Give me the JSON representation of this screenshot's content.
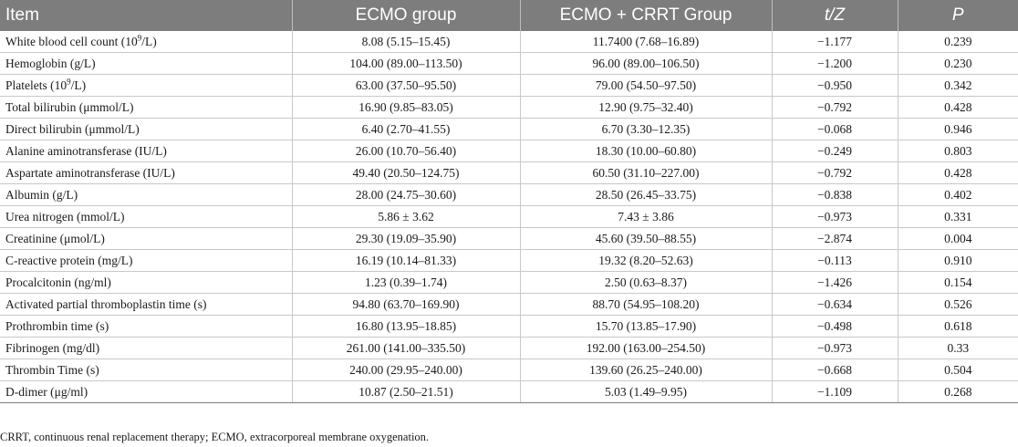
{
  "table": {
    "headers": [
      "Item",
      "ECMO group",
      "ECMO + CRRT Group",
      "t/Z",
      "P"
    ],
    "rows": [
      {
        "item_pre": "White blood cell count (10",
        "item_sup": "9",
        "item_post": "/L)",
        "ecmo": "8.08 (5.15–15.45)",
        "ecmo_crrt": "11.7400 (7.68–16.89)",
        "tz": "−1.177",
        "p": "0.239"
      },
      {
        "item_pre": "Hemoglobin (g/L)",
        "item_sup": "",
        "item_post": "",
        "ecmo": "104.00 (89.00–113.50)",
        "ecmo_crrt": "96.00 (89.00–106.50)",
        "tz": "−1.200",
        "p": "0.230"
      },
      {
        "item_pre": "Platelets (10",
        "item_sup": "9",
        "item_post": "/L)",
        "ecmo": "63.00 (37.50–95.50)",
        "ecmo_crrt": "79.00 (54.50–97.50)",
        "tz": "−0.950",
        "p": "0.342"
      },
      {
        "item_pre": "Total bilirubin (μmmol/L)",
        "item_sup": "",
        "item_post": "",
        "ecmo": "16.90 (9.85–83.05)",
        "ecmo_crrt": "12.90 (9.75–32.40)",
        "tz": "−0.792",
        "p": "0.428"
      },
      {
        "item_pre": "Direct bilirubin (μmmol/L)",
        "item_sup": "",
        "item_post": "",
        "ecmo": "6.40 (2.70–41.55)",
        "ecmo_crrt": "6.70 (3.30–12.35)",
        "tz": "−0.068",
        "p": "0.946"
      },
      {
        "item_pre": "Alanine aminotransferase (IU/L)",
        "item_sup": "",
        "item_post": "",
        "ecmo": "26.00 (10.70–56.40)",
        "ecmo_crrt": "18.30 (10.00–60.80)",
        "tz": "−0.249",
        "p": "0.803"
      },
      {
        "item_pre": "Aspartate aminotransferase (IU/L)",
        "item_sup": "",
        "item_post": "",
        "ecmo": "49.40 (20.50–124.75)",
        "ecmo_crrt": "60.50 (31.10–227.00)",
        "tz": "−0.792",
        "p": "0.428"
      },
      {
        "item_pre": "Albumin (g/L)",
        "item_sup": "",
        "item_post": "",
        "ecmo": "28.00 (24.75–30.60)",
        "ecmo_crrt": "28.50 (26.45–33.75)",
        "tz": "−0.838",
        "p": "0.402"
      },
      {
        "item_pre": "Urea nitrogen (mmol/L)",
        "item_sup": "",
        "item_post": "",
        "ecmo": "5.86 ± 3.62",
        "ecmo_crrt": "7.43 ± 3.86",
        "tz": "−0.973",
        "p": "0.331"
      },
      {
        "item_pre": "Creatinine (μmol/L)",
        "item_sup": "",
        "item_post": "",
        "ecmo": "29.30 (19.09–35.90)",
        "ecmo_crrt": "45.60 (39.50–88.55)",
        "tz": "−2.874",
        "p": "0.004"
      },
      {
        "item_pre": "C-reactive protein (mg/L)",
        "item_sup": "",
        "item_post": "",
        "ecmo": "16.19 (10.14–81.33)",
        "ecmo_crrt": "19.32 (8.20–52.63)",
        "tz": "−0.113",
        "p": "0.910"
      },
      {
        "item_pre": "Procalcitonin (ng/ml)",
        "item_sup": "",
        "item_post": "",
        "ecmo": "1.23 (0.39–1.74)",
        "ecmo_crrt": "2.50 (0.63–8.37)",
        "tz": "−1.426",
        "p": "0.154"
      },
      {
        "item_pre": "Activated partial thromboplastin time (s)",
        "item_sup": "",
        "item_post": "",
        "ecmo": "94.80 (63.70–169.90)",
        "ecmo_crrt": "88.70 (54.95–108.20)",
        "tz": "−0.634",
        "p": "0.526"
      },
      {
        "item_pre": "Prothrombin time (s)",
        "item_sup": "",
        "item_post": "",
        "ecmo": "16.80 (13.95–18.85)",
        "ecmo_crrt": "15.70 (13.85–17.90)",
        "tz": "−0.498",
        "p": "0.618"
      },
      {
        "item_pre": "Fibrinogen (mg/dl)",
        "item_sup": "",
        "item_post": "",
        "ecmo": "261.00 (141.00–335.50)",
        "ecmo_crrt": "192.00 (163.00–254.50)",
        "tz": "−0.973",
        "p": "0.33"
      },
      {
        "item_pre": "Thrombin Time (s)",
        "item_sup": "",
        "item_post": "",
        "ecmo": "240.00 (29.95–240.00)",
        "ecmo_crrt": "139.60 (26.25–240.00)",
        "tz": "−0.668",
        "p": "0.504"
      },
      {
        "item_pre": "D-dimer (μg/ml)",
        "item_sup": "",
        "item_post": "",
        "ecmo": "10.87 (2.50–21.51)",
        "ecmo_crrt": "5.03 (1.49–9.95)",
        "tz": "−1.109",
        "p": "0.268"
      }
    ]
  },
  "footnote": "CRRT, continuous renal replacement therapy; ECMO, extracorporeal membrane oxygenation."
}
